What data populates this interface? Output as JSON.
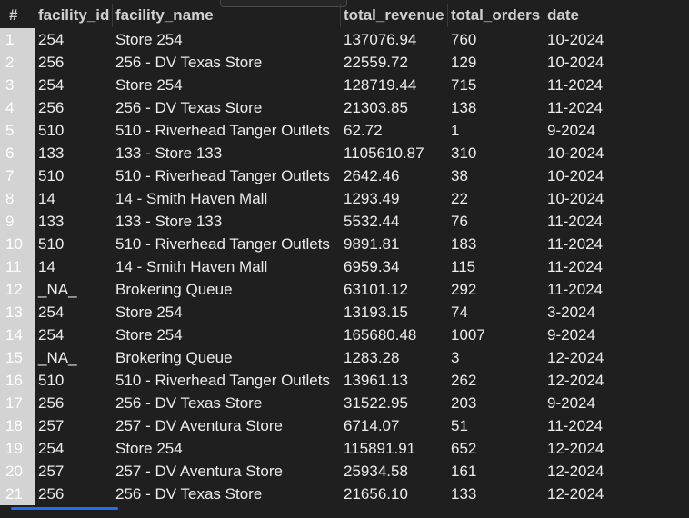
{
  "table": {
    "columns": [
      "#",
      "facility_id",
      "facility_name",
      "total_revenue",
      "total_orders",
      "date"
    ],
    "rows": [
      [
        "1",
        "254",
        "Store 254",
        "137076.94",
        "760",
        "10-2024"
      ],
      [
        "2",
        "256",
        "256 - DV Texas Store",
        "22559.72",
        "129",
        "10-2024"
      ],
      [
        "3",
        "254",
        "Store 254",
        "128719.44",
        "715",
        "11-2024"
      ],
      [
        "4",
        "256",
        "256 - DV Texas Store",
        "21303.85",
        "138",
        "11-2024"
      ],
      [
        "5",
        "510",
        "510 - Riverhead Tanger Outlets",
        "62.72",
        "1",
        "9-2024"
      ],
      [
        "6",
        "133",
        "133 - Store 133",
        "1105610.87",
        "310",
        "10-2024"
      ],
      [
        "7",
        "510",
        "510 - Riverhead Tanger Outlets",
        "2642.46",
        "38",
        "10-2024"
      ],
      [
        "8",
        "14",
        "14 - Smith Haven Mall",
        "1293.49",
        "22",
        "10-2024"
      ],
      [
        "9",
        "133",
        "133 - Store 133",
        "5532.44",
        "76",
        "11-2024"
      ],
      [
        "10",
        "510",
        "510 - Riverhead Tanger Outlets",
        "9891.81",
        "183",
        "11-2024"
      ],
      [
        "11",
        "14",
        "14 - Smith Haven Mall",
        "6959.34",
        "115",
        "11-2024"
      ],
      [
        "12",
        "_NA_",
        "Brokering Queue",
        "63101.12",
        "292",
        "11-2024"
      ],
      [
        "13",
        "254",
        "Store 254",
        "13193.15",
        "74",
        "3-2024"
      ],
      [
        "14",
        "254",
        "Store 254",
        "165680.48",
        "1007",
        "9-2024"
      ],
      [
        "15",
        "_NA_",
        "Brokering Queue",
        "1283.28",
        "3",
        "12-2024"
      ],
      [
        "16",
        "510",
        "510 - Riverhead Tanger Outlets",
        "13961.13",
        "262",
        "12-2024"
      ],
      [
        "17",
        "256",
        "256 - DV Texas Store",
        "31522.95",
        "203",
        "9-2024"
      ],
      [
        "18",
        "257",
        "257 - DV Aventura Store",
        "6714.07",
        "51",
        "11-2024"
      ],
      [
        "19",
        "254",
        "Store 254",
        "115891.91",
        "652",
        "12-2024"
      ],
      [
        "20",
        "257",
        "257 - DV Aventura Store",
        "25934.58",
        "161",
        "12-2024"
      ],
      [
        "21",
        "256",
        "256 - DV Texas Store",
        "21656.10",
        "133",
        "12-2024"
      ]
    ]
  }
}
